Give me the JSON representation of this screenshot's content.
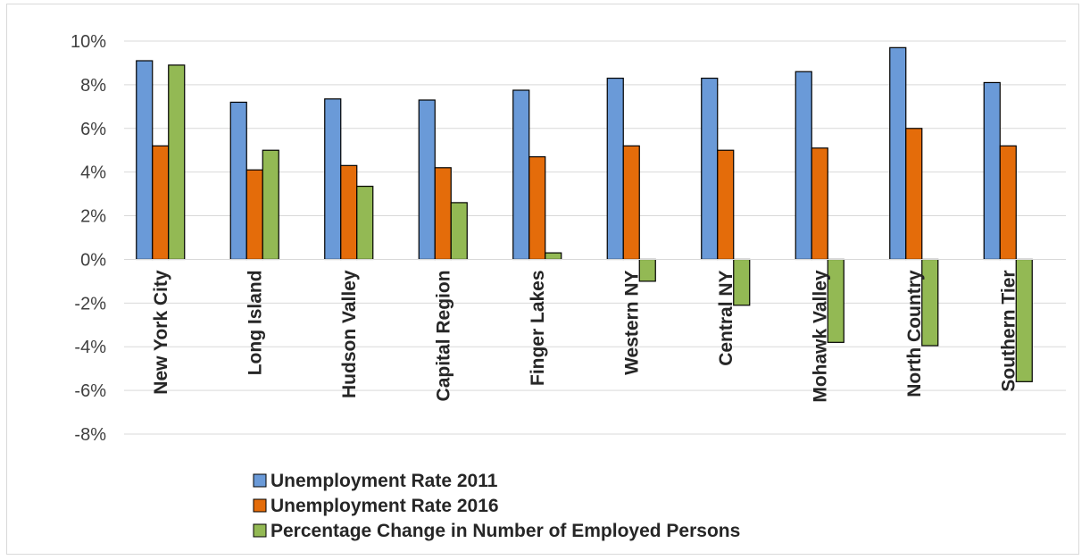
{
  "chart_data": {
    "type": "bar",
    "categories": [
      "New York City",
      "Long Island",
      "Hudson Valley",
      "Capital Region",
      "Finger Lakes",
      "Western NY",
      "Central NY",
      "Mohawk Valley",
      "North Country",
      "Southern Tier"
    ],
    "series": [
      {
        "name": "Unemployment Rate 2011",
        "color": "#6a9ad8",
        "values": [
          9.1,
          7.2,
          7.35,
          7.3,
          7.75,
          8.3,
          8.3,
          8.6,
          9.7,
          8.1
        ]
      },
      {
        "name": "Unemployment Rate 2016",
        "color": "#e46c0a",
        "values": [
          5.2,
          4.1,
          4.3,
          4.2,
          4.7,
          5.2,
          5.0,
          5.1,
          6.0,
          5.2
        ]
      },
      {
        "name": "Percentage Change in Number of Employed Persons",
        "color": "#93b954",
        "values": [
          8.9,
          5.0,
          3.35,
          2.6,
          0.3,
          -1.0,
          -2.1,
          -3.8,
          -3.95,
          -5.6
        ]
      }
    ],
    "yticks": [
      "10%",
      "8%",
      "6%",
      "4%",
      "2%",
      "0%",
      "-2%",
      "-4%",
      "-6%",
      "-8%"
    ],
    "ylim": [
      -8,
      10
    ],
    "ytick_step": 2,
    "grid": true,
    "legend_position": "bottom"
  }
}
